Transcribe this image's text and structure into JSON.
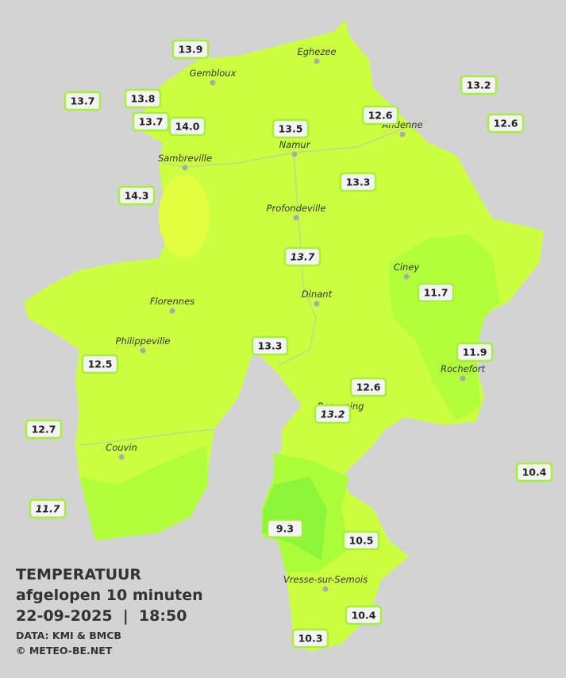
{
  "towns": [
    {
      "name": "Eghezee"
    },
    {
      "name": "Gembloux"
    },
    {
      "name": "Andenne"
    },
    {
      "name": "Namur"
    },
    {
      "name": "Sambreville"
    },
    {
      "name": "Profondeville"
    },
    {
      "name": "Ciney"
    },
    {
      "name": "Dinant"
    },
    {
      "name": "Florennes"
    },
    {
      "name": "Philippeville"
    },
    {
      "name": "Rochefort"
    },
    {
      "name": "Beauraing"
    },
    {
      "name": "Couvin"
    },
    {
      "name": "Vresse-sur-Semois"
    }
  ],
  "stations": [
    {
      "value": "13.9",
      "italic": false
    },
    {
      "value": "13.7",
      "italic": false
    },
    {
      "value": "13.8",
      "italic": false
    },
    {
      "value": "13.7",
      "italic": false
    },
    {
      "value": "14.0",
      "italic": false
    },
    {
      "value": "13.5",
      "italic": false
    },
    {
      "value": "12.6",
      "italic": false
    },
    {
      "value": "13.2",
      "italic": false
    },
    {
      "value": "12.6",
      "italic": false
    },
    {
      "value": "13.3",
      "italic": false
    },
    {
      "value": "14.3",
      "italic": false
    },
    {
      "value": "13.7",
      "italic": true
    },
    {
      "value": "11.7",
      "italic": false
    },
    {
      "value": "13.3",
      "italic": false
    },
    {
      "value": "11.9",
      "italic": false
    },
    {
      "value": "12.5",
      "italic": false
    },
    {
      "value": "12.6",
      "italic": false
    },
    {
      "value": "13.2",
      "italic": true
    },
    {
      "value": "12.7",
      "italic": false
    },
    {
      "value": "10.4",
      "italic": false
    },
    {
      "value": "11.7",
      "italic": true
    },
    {
      "value": "9.3",
      "italic": false
    },
    {
      "value": "10.5",
      "italic": false
    },
    {
      "value": "10.4",
      "italic": false
    },
    {
      "value": "10.3",
      "italic": false
    }
  ],
  "legend": {
    "title": "TEMPERATUUR",
    "subtitle": "afgelopen 10 minuten",
    "timestamp": "22-09-2025  |  18:50",
    "source": "DATA: KMI & BMCB",
    "copyright": "© METEO-BE.NET"
  }
}
